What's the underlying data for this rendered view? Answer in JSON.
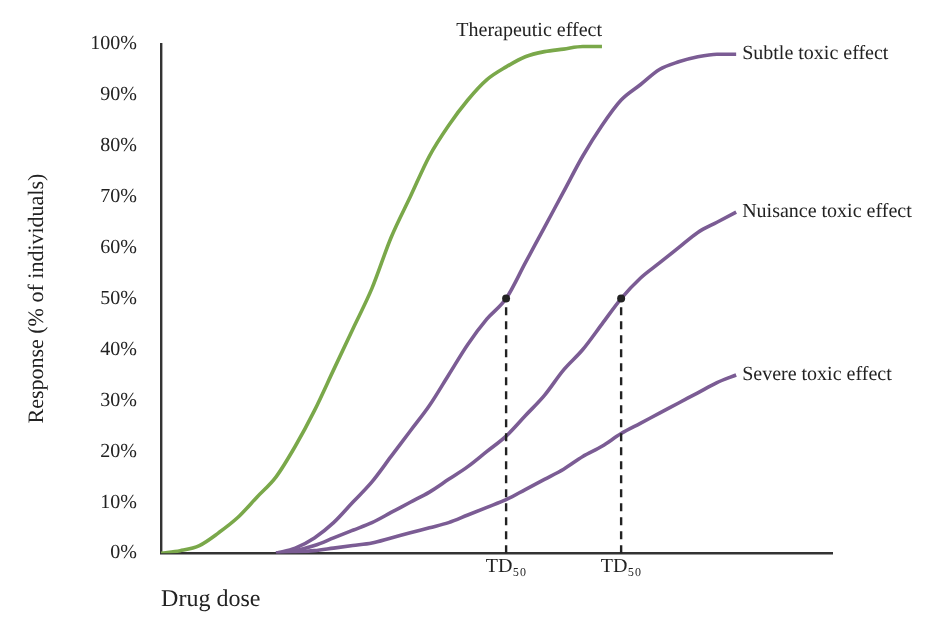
{
  "chart_data": {
    "type": "line",
    "ylabel": "Response (% of individuals)",
    "xlabel": "Drug dose",
    "categories": [
      null,
      null,
      null,
      null,
      null,
      null,
      null,
      null,
      null,
      null,
      null,
      null,
      null,
      null,
      null,
      null,
      null,
      null,
      null,
      null,
      null,
      null,
      null,
      null,
      null,
      null,
      null,
      null,
      null,
      null,
      null,
      null,
      null,
      null,
      null,
      null
    ],
    "ylim": [
      0,
      100
    ],
    "yticks": [
      {
        "value": 0,
        "label": "0%"
      },
      {
        "value": 10,
        "label": "10%"
      },
      {
        "value": 20,
        "label": "20%"
      },
      {
        "value": 30,
        "label": "30%"
      },
      {
        "value": 40,
        "label": "40%"
      },
      {
        "value": 50,
        "label": "50%"
      },
      {
        "value": 60,
        "label": "60%"
      },
      {
        "value": 70,
        "label": "70%"
      },
      {
        "value": 80,
        "label": "80%"
      },
      {
        "value": 90,
        "label": "90%"
      },
      {
        "value": 100,
        "label": "100%"
      }
    ],
    "annotations": [
      "TD₅₀",
      "TD₅₀"
    ],
    "grid": false,
    "legend": false,
    "marker": "none",
    "tick_labels": "y",
    "series": [
      {
        "name": "Therapeutic effect",
        "color": "#7aa84a",
        "values": [
          0,
          0.5,
          1.5,
          4,
          7,
          11,
          15,
          21,
          28,
          36,
          44,
          52,
          62,
          70,
          78,
          84,
          89,
          93,
          95.5,
          97.5,
          98.5,
          99,
          99.5,
          99.5,
          null,
          null,
          null,
          null,
          null,
          null,
          null,
          null,
          null,
          null,
          null,
          null
        ]
      },
      {
        "name": "Subtle toxic effect",
        "color": "#7b5c94",
        "values": [
          null,
          null,
          null,
          null,
          null,
          null,
          0,
          1,
          3,
          6,
          10,
          14,
          19,
          24,
          29,
          35,
          41,
          46,
          50,
          57,
          64,
          71,
          78,
          84,
          89,
          92,
          95,
          96.5,
          97.5,
          98,
          98,
          null,
          null,
          null,
          null,
          null
        ]
      },
      {
        "name": "Nuisance toxic effect",
        "color": "#7b5c94",
        "values": [
          null,
          null,
          null,
          null,
          null,
          null,
          0,
          0.5,
          1.5,
          3,
          4.5,
          6,
          8,
          10,
          12,
          14.5,
          17,
          20,
          23,
          27,
          31,
          36,
          40,
          45,
          50,
          54,
          57,
          60,
          63,
          65,
          67,
          null,
          null,
          null,
          null,
          null
        ]
      },
      {
        "name": "Severe toxic effect",
        "color": "#7b5c94",
        "values": [
          null,
          null,
          null,
          null,
          null,
          null,
          0,
          0.2,
          0.5,
          1,
          1.5,
          2,
          3,
          4,
          5,
          6,
          7.5,
          9,
          10.5,
          12.5,
          14.5,
          16.5,
          19,
          21,
          23.5,
          25.5,
          27.5,
          29.5,
          31.5,
          33.5,
          35,
          null,
          null,
          null,
          null,
          null
        ]
      },
      {
        "type": "lollipop",
        "color": "#222222",
        "line_style": "dashed",
        "marker": "circle",
        "values": [
          null,
          null,
          null,
          null,
          null,
          null,
          null,
          null,
          null,
          null,
          null,
          null,
          null,
          null,
          null,
          null,
          null,
          null,
          50,
          null,
          null,
          null,
          null,
          null,
          null,
          null,
          null,
          null,
          null,
          null,
          null,
          null,
          null,
          null,
          null,
          null
        ]
      },
      {
        "type": "lollipop",
        "color": "#222222",
        "line_style": "dashed",
        "marker": "circle",
        "values": [
          null,
          null,
          null,
          null,
          null,
          null,
          null,
          null,
          null,
          null,
          null,
          null,
          null,
          null,
          null,
          null,
          null,
          null,
          null,
          null,
          null,
          null,
          null,
          null,
          50,
          null,
          null,
          null,
          null,
          null,
          null,
          null,
          null,
          null,
          null,
          null
        ]
      }
    ]
  }
}
